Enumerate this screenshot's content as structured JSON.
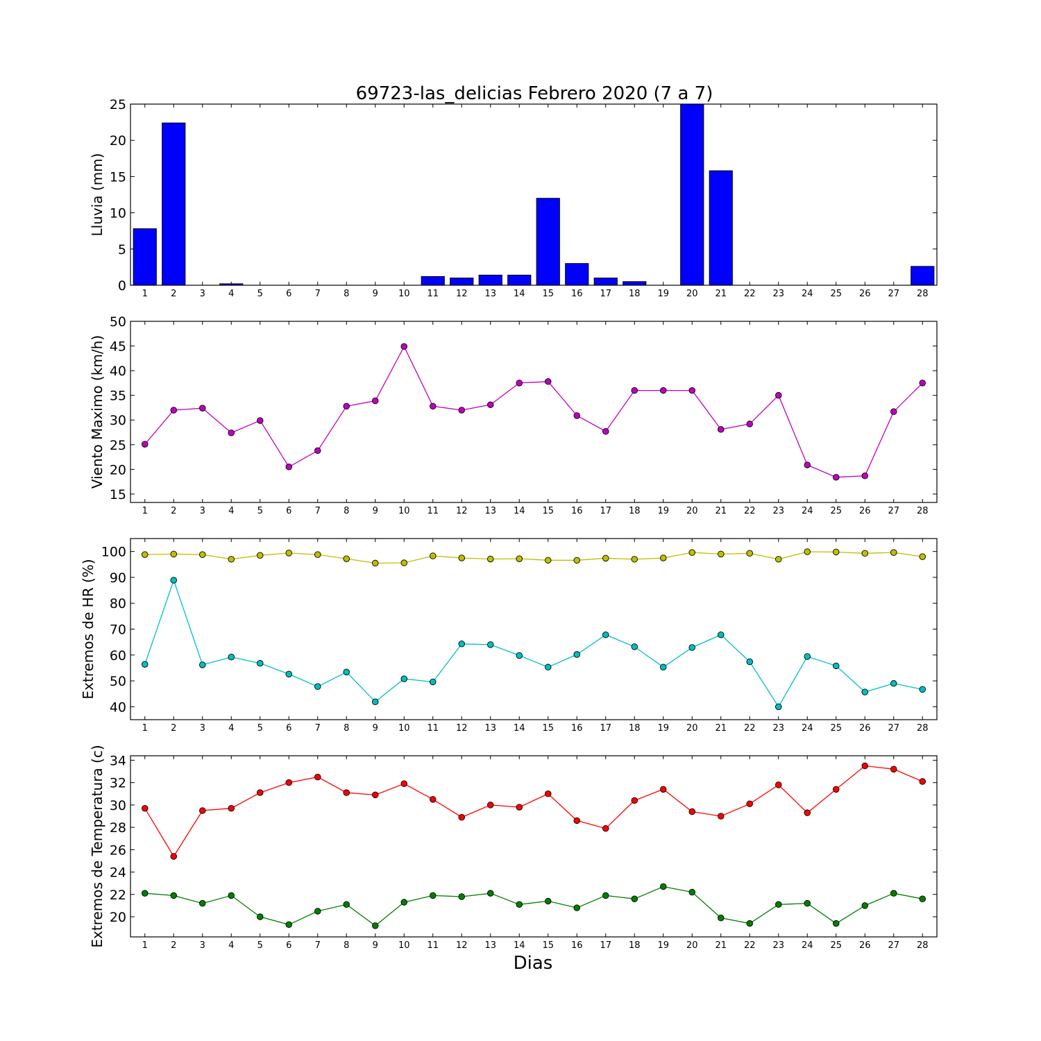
{
  "chart_data": {
    "title": "69723-las_delicias Febrero 2020  (7 a 7)",
    "xlabel": "Dias",
    "days": [
      1,
      2,
      3,
      4,
      5,
      6,
      7,
      8,
      9,
      10,
      11,
      12,
      13,
      14,
      15,
      16,
      17,
      18,
      19,
      20,
      21,
      22,
      23,
      24,
      25,
      26,
      27,
      28
    ],
    "panels": [
      {
        "type": "bar",
        "ylabel": "Lluvia (mm)",
        "ylim": [
          0,
          25
        ],
        "yticks": [
          0,
          5,
          10,
          15,
          20,
          25
        ],
        "series": [
          {
            "color": "#0000ff",
            "values": [
              7.8,
              22.4,
              0,
              0.2,
              0,
              0,
              0,
              0,
              0,
              0,
              1.2,
              1.0,
              1.4,
              1.4,
              12.0,
              3.0,
              1.0,
              0.5,
              0,
              25.0,
              15.8,
              0,
              0,
              0,
              0,
              0,
              0,
              2.6
            ]
          }
        ]
      },
      {
        "type": "line",
        "ylabel": "Viento Maximo (km/h)",
        "ylim": [
          13.3,
          50
        ],
        "yticks": [
          15,
          20,
          25,
          30,
          35,
          40,
          45,
          50
        ],
        "series": [
          {
            "color": "#bf00bf",
            "values": [
              25.1,
              32.0,
              32.4,
              27.4,
              29.9,
              20.5,
              23.8,
              32.8,
              33.9,
              44.9,
              32.8,
              32.0,
              33.1,
              37.5,
              37.8,
              30.9,
              27.7,
              36.0,
              36.0,
              36.0,
              28.1,
              29.2,
              35.0,
              20.9,
              18.4,
              18.7,
              31.7,
              37.5
            ]
          }
        ]
      },
      {
        "type": "line",
        "ylabel": "Extremos de HR (%)",
        "ylim": [
          35,
          105
        ],
        "yticks": [
          40,
          50,
          60,
          70,
          80,
          90,
          100
        ],
        "series": [
          {
            "color": "#bfbf00",
            "values": [
              98.8,
              99.0,
              98.8,
              97.0,
              98.5,
              99.4,
              98.8,
              97.2,
              95.5,
              95.6,
              98.3,
              97.5,
              97.1,
              97.2,
              96.6,
              96.6,
              97.4,
              97.0,
              97.5,
              99.6,
              99.0,
              99.3,
              97.0,
              99.9,
              99.8,
              99.3,
              99.6,
              98.0
            ]
          },
          {
            "color": "#00bfbf",
            "values": [
              56.4,
              88.9,
              56.2,
              59.2,
              56.8,
              52.6,
              47.8,
              53.4,
              41.9,
              50.8,
              49.6,
              64.3,
              64.0,
              59.8,
              55.3,
              60.2,
              67.8,
              63.2,
              55.3,
              62.9,
              67.8,
              57.4,
              40.0,
              59.4,
              55.8,
              45.7,
              49.0,
              46.7
            ]
          }
        ]
      },
      {
        "type": "line",
        "ylabel": "Extremos de Temperatura (c)",
        "ylim": [
          18.2,
          34.4
        ],
        "yticks": [
          20,
          22,
          24,
          26,
          28,
          30,
          32,
          34
        ],
        "series": [
          {
            "color": "#ff0000",
            "values": [
              29.7,
              25.4,
              29.5,
              29.7,
              31.1,
              32.0,
              32.5,
              31.1,
              30.9,
              31.9,
              30.5,
              28.9,
              30.0,
              29.8,
              31.0,
              28.6,
              27.9,
              30.4,
              31.4,
              29.4,
              29.0,
              30.1,
              31.8,
              29.3,
              31.4,
              33.5,
              33.2,
              32.1
            ]
          },
          {
            "color": "#008000",
            "values": [
              22.1,
              21.9,
              21.2,
              21.9,
              20.0,
              19.3,
              20.5,
              21.1,
              19.2,
              21.3,
              21.9,
              21.8,
              22.1,
              21.1,
              21.4,
              20.8,
              21.9,
              21.6,
              22.7,
              22.2,
              19.9,
              19.4,
              21.1,
              21.2,
              19.4,
              21.0,
              22.1,
              21.6
            ]
          }
        ]
      }
    ]
  }
}
